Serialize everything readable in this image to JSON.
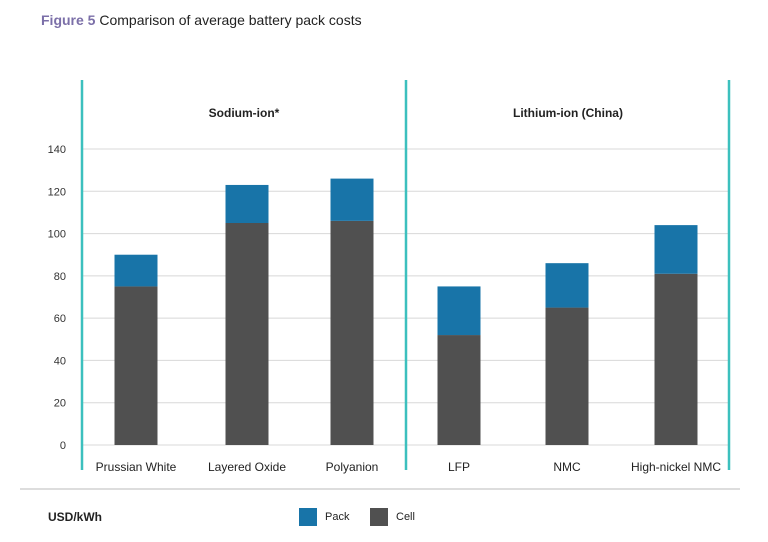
{
  "figure_label": "Figure 5",
  "figure_title": "Comparison of average battery pack costs",
  "units": "USD/kWh",
  "colors": {
    "pack": "#1874a8",
    "cell": "#505050",
    "divider": "#3cc0be",
    "title_accent": "#7b6fa8"
  },
  "chart_data": {
    "type": "bar",
    "stacked": true,
    "groups": [
      {
        "label": "Sodium-ion*",
        "categories": [
          "Prussian White",
          "Layered Oxide",
          "Polyanion"
        ]
      },
      {
        "label": "Lithium-ion (China)",
        "categories": [
          "LFP",
          "NMC",
          "High-nickel NMC"
        ]
      }
    ],
    "categories": [
      "Prussian White",
      "Layered Oxide",
      "Polyanion",
      "LFP",
      "NMC",
      "High-nickel NMC"
    ],
    "series": [
      {
        "name": "Cell",
        "values": [
          75,
          105,
          106,
          52,
          65,
          81
        ]
      },
      {
        "name": "Pack",
        "values": [
          15,
          18,
          20,
          23,
          21,
          23
        ]
      }
    ],
    "ylabel": "USD/kWh",
    "ylim": [
      0,
      140
    ],
    "yticks": [
      0,
      20,
      40,
      60,
      80,
      100,
      120,
      140
    ],
    "grid": true,
    "legend": "bottom"
  }
}
